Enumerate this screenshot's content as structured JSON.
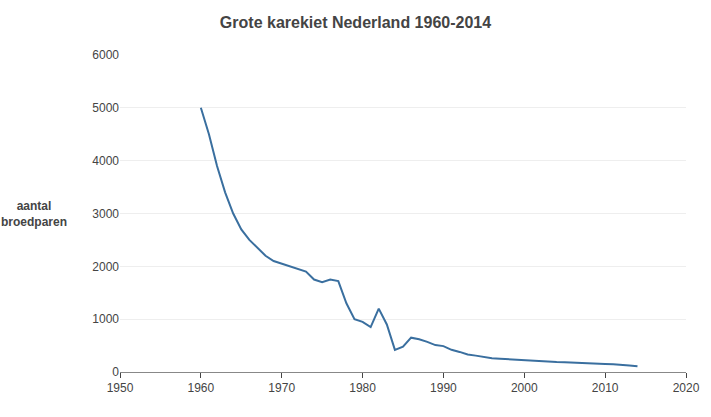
{
  "chart_data": {
    "type": "line",
    "title": "Grote karekiet Nederland 1960-2014",
    "ylabel": "aantal\nbroedparen",
    "x": [
      1960,
      1961,
      1962,
      1963,
      1964,
      1965,
      1966,
      1967,
      1968,
      1969,
      1970,
      1971,
      1972,
      1973,
      1974,
      1975,
      1976,
      1977,
      1978,
      1979,
      1980,
      1981,
      1982,
      1983,
      1984,
      1985,
      1986,
      1987,
      1988,
      1989,
      1990,
      1991,
      1992,
      1993,
      1994,
      1995,
      1996,
      1997,
      1998,
      1999,
      2000,
      2001,
      2002,
      2003,
      2004,
      2005,
      2006,
      2007,
      2008,
      2009,
      2010,
      2011,
      2012,
      2013,
      2014
    ],
    "values": [
      5000,
      4500,
      3900,
      3400,
      3000,
      2700,
      2500,
      2350,
      2200,
      2100,
      2050,
      2000,
      1950,
      1900,
      1750,
      1700,
      1750,
      1720,
      1300,
      1000,
      950,
      850,
      1200,
      900,
      420,
      480,
      650,
      620,
      570,
      510,
      490,
      420,
      380,
      330,
      310,
      280,
      260,
      250,
      240,
      230,
      220,
      215,
      210,
      200,
      190,
      185,
      175,
      170,
      165,
      155,
      150,
      145,
      140,
      125,
      110
    ],
    "color": "#3a6f9f",
    "xlim": [
      1950,
      2020
    ],
    "xticks": [
      1950,
      1960,
      1970,
      1980,
      1990,
      2000,
      2010,
      2020
    ],
    "ylim": [
      0,
      6000
    ],
    "yticks": [
      0,
      1000,
      2000,
      3000,
      4000,
      5000,
      6000
    ],
    "grid": true
  }
}
